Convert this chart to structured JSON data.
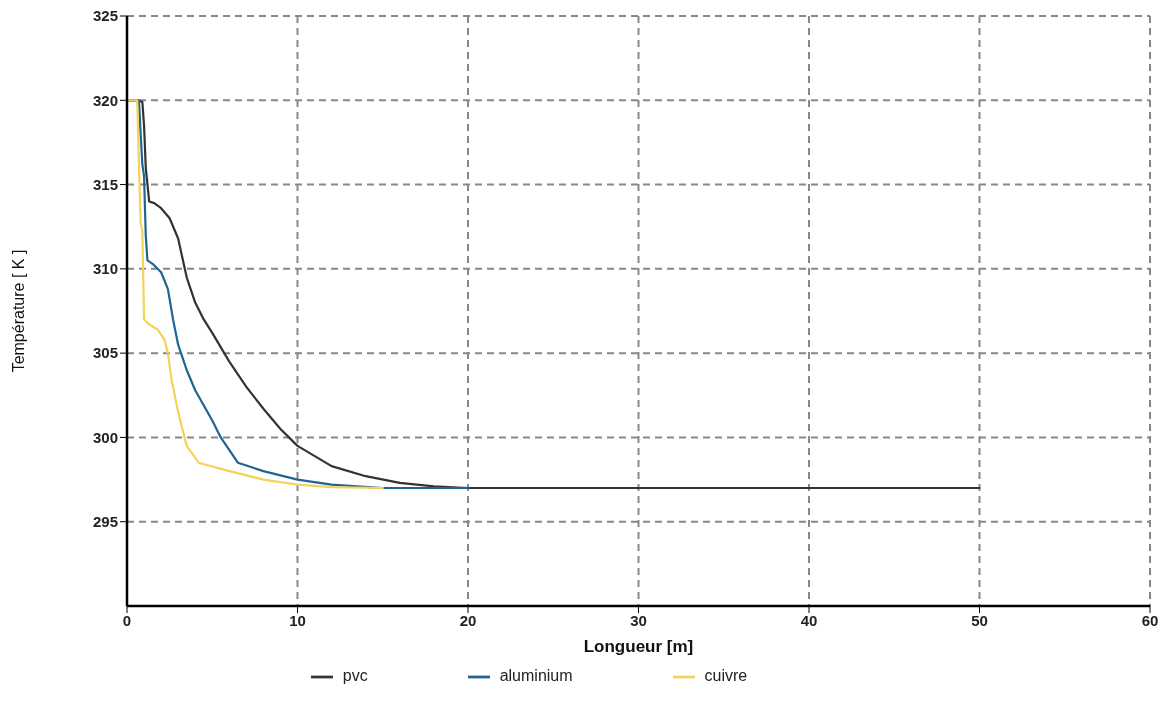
{
  "chart_data": {
    "type": "line",
    "xlabel": "Longueur [m]",
    "ylabel": "Température [ K ]",
    "xlim": [
      0,
      60
    ],
    "xticks": [
      0,
      10,
      20,
      30,
      40,
      50,
      60
    ],
    "ylim": [
      290,
      325
    ],
    "yticks": [
      295,
      300,
      305,
      310,
      315,
      320,
      325
    ],
    "grid": true,
    "legend": "bottom",
    "marker": "none",
    "line_style": "solid",
    "series": [
      {
        "name": "pvc",
        "color": "#333333",
        "x": [
          0,
          0.6,
          0.9,
          1.0,
          1.1,
          1.3,
          1.6,
          2.0,
          2.5,
          3.0,
          3.5,
          4.0,
          4.5,
          5,
          6,
          7,
          8,
          9,
          10,
          12,
          14,
          16,
          18,
          20,
          50
        ],
        "values": [
          320,
          320,
          319.9,
          318.5,
          316,
          314,
          313.9,
          313.6,
          313,
          311.8,
          309.5,
          308,
          307,
          306.2,
          304.5,
          303,
          301.7,
          300.5,
          299.5,
          298.3,
          297.7,
          297.3,
          297.1,
          297,
          297
        ]
      },
      {
        "name": "aluminium",
        "color": "#1f6591",
        "x": [
          0,
          0.7,
          0.8,
          0.9,
          1.0,
          1.1,
          1.2,
          1.5,
          2.0,
          2.4,
          2.7,
          3.0,
          3.5,
          4,
          5,
          5.5,
          6.5,
          8,
          10,
          12,
          15,
          20
        ],
        "values": [
          320,
          320,
          318,
          316.2,
          315.5,
          312,
          310.5,
          310.3,
          309.8,
          308.8,
          307,
          305.5,
          304,
          302.8,
          301,
          300,
          298.5,
          298,
          297.5,
          297.2,
          297,
          297
        ]
      },
      {
        "name": "cuivre",
        "color": "#f2d35c",
        "x": [
          0,
          0.6,
          0.7,
          0.8,
          0.9,
          1.0,
          1.3,
          1.8,
          2.2,
          2.4,
          2.6,
          3,
          3.5,
          4.2,
          6,
          8,
          10,
          12,
          15
        ],
        "values": [
          320,
          320,
          316.2,
          312.7,
          312.3,
          307,
          306.7,
          306.4,
          305.8,
          305,
          303.5,
          301.5,
          299.5,
          298.5,
          298,
          297.5,
          297.2,
          297.05,
          297
        ]
      }
    ]
  }
}
